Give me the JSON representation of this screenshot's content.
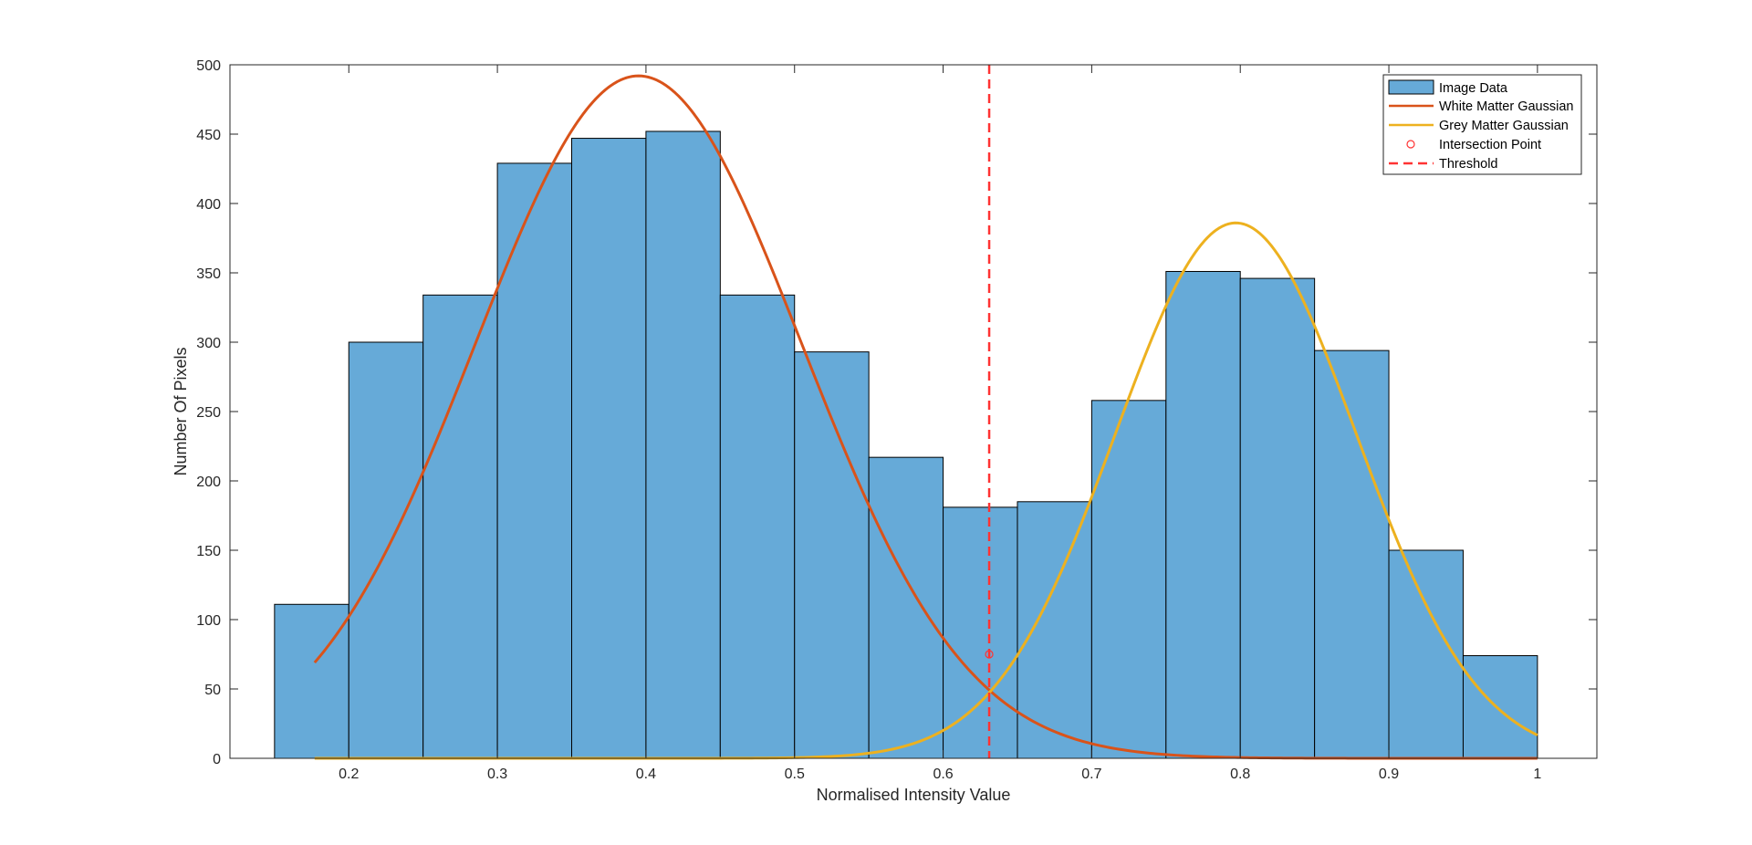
{
  "chart_data": {
    "type": "bar",
    "xlabel": "Normalised Intensity Value",
    "ylabel": "Number Of Pixels",
    "xlim": [
      0.12,
      1.04
    ],
    "ylim": [
      0,
      500
    ],
    "xticks": [
      0.2,
      0.3,
      0.4,
      0.5,
      0.6,
      0.7,
      0.8,
      0.9,
      1
    ],
    "xtick_labels": [
      "0.2",
      "0.3",
      "0.4",
      "0.5",
      "0.6",
      "0.7",
      "0.8",
      "0.9",
      "1"
    ],
    "yticks": [
      0,
      50,
      100,
      150,
      200,
      250,
      300,
      350,
      400,
      450,
      500
    ],
    "ytick_labels": [
      "0",
      "50",
      "100",
      "150",
      "200",
      "250",
      "300",
      "350",
      "400",
      "450",
      "500"
    ],
    "grid": false,
    "legend_position": "top-right",
    "histogram": {
      "name": "Image Data",
      "bin_edges": [
        0.15,
        0.2,
        0.25,
        0.3,
        0.35,
        0.4,
        0.45,
        0.5,
        0.55,
        0.6,
        0.65,
        0.7,
        0.75,
        0.8,
        0.85,
        0.9,
        0.95,
        1.0
      ],
      "counts": [
        111,
        300,
        334,
        429,
        447,
        452,
        334,
        293,
        217,
        181,
        185,
        258,
        351,
        346,
        294,
        150,
        74
      ],
      "color": "#66aad8"
    },
    "series": [
      {
        "name": "White Matter Gaussian",
        "type": "line",
        "color": "#d9531a",
        "model": "gaussian",
        "amplitude": 492,
        "mean": 0.395,
        "sigma": 0.11,
        "x_range": [
          0.177,
          1.0
        ]
      },
      {
        "name": "Grey Matter Gaussian",
        "type": "line",
        "color": "#edb11f",
        "model": "gaussian",
        "amplitude": 386,
        "mean": 0.797,
        "sigma": 0.081,
        "x_range": [
          0.177,
          1.0
        ]
      },
      {
        "name": "Intersection Point",
        "type": "scatter",
        "color": "#ff3333",
        "x": [
          0.631
        ],
        "y": [
          75
        ]
      },
      {
        "name": "Threshold",
        "type": "vline",
        "color": "#ff3333",
        "x": 0.631
      }
    ]
  }
}
